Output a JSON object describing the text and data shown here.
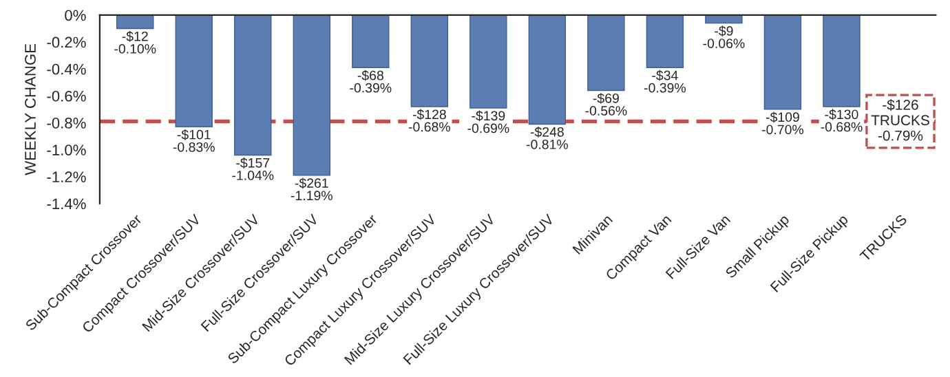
{
  "chart_data": {
    "type": "bar",
    "ylabel": "WEEKLY CHANGE",
    "categories": [
      "Sub-Compact Crossover",
      "Compact Crossover/SUV",
      "Mid-Size Crossover/SUV",
      "Full-Size Crossover/SUV",
      "Sub-Compact Luxury Crossover",
      "Compact Luxury Crossover/SUV",
      "Mid-Size Luxury Crossover/SUV",
      "Full-Size Luxury Crossover/SUV",
      "Minivan",
      "Compact Van",
      "Full-Size Van",
      "Small Pickup",
      "Full-Size Pickup",
      "TRUCKS"
    ],
    "values": [
      -0.1,
      -0.83,
      -1.04,
      -1.19,
      -0.39,
      -0.68,
      -0.69,
      -0.81,
      -0.56,
      -0.39,
      -0.06,
      -0.7,
      -0.68,
      null
    ],
    "value_labels": [
      "-$12\n-0.10%",
      "-$101\n-0.83%",
      "-$157\n-1.04%",
      "-$261\n-1.19%",
      "-$68\n-0.39%",
      "-$128\n-0.68%",
      "-$139\n-0.69%",
      "-$248\n-0.81%",
      "-$69\n-0.56%",
      "-$34\n-0.39%",
      "-$9\n-0.06%",
      "-$109\n-0.70%",
      "-$130\n-0.68%",
      null
    ],
    "color": "#5b7db1",
    "ylim": [
      -1.4,
      0
    ],
    "yticks": [
      {
        "value": 0,
        "label": "0%"
      },
      {
        "value": -0.2,
        "label": "-0.2%"
      },
      {
        "value": -0.4,
        "label": "-0.4%"
      },
      {
        "value": -0.6,
        "label": "-0.6%"
      },
      {
        "value": -0.8,
        "label": "-0.8%"
      },
      {
        "value": -1.0,
        "label": "-1.0%"
      },
      {
        "value": -1.2,
        "label": "-1.2%"
      },
      {
        "value": -1.4,
        "label": "-1.4%"
      }
    ],
    "ref_lines": [
      {
        "axis": "y",
        "value": -0.79,
        "color": "#c0504d",
        "line_style": "dashed"
      }
    ],
    "annotations": [
      {
        "text": "-$126\nTRUCKS\n-0.79%",
        "x": "TRUCKS",
        "y": -0.79
      }
    ],
    "grid": false,
    "legend": false
  }
}
